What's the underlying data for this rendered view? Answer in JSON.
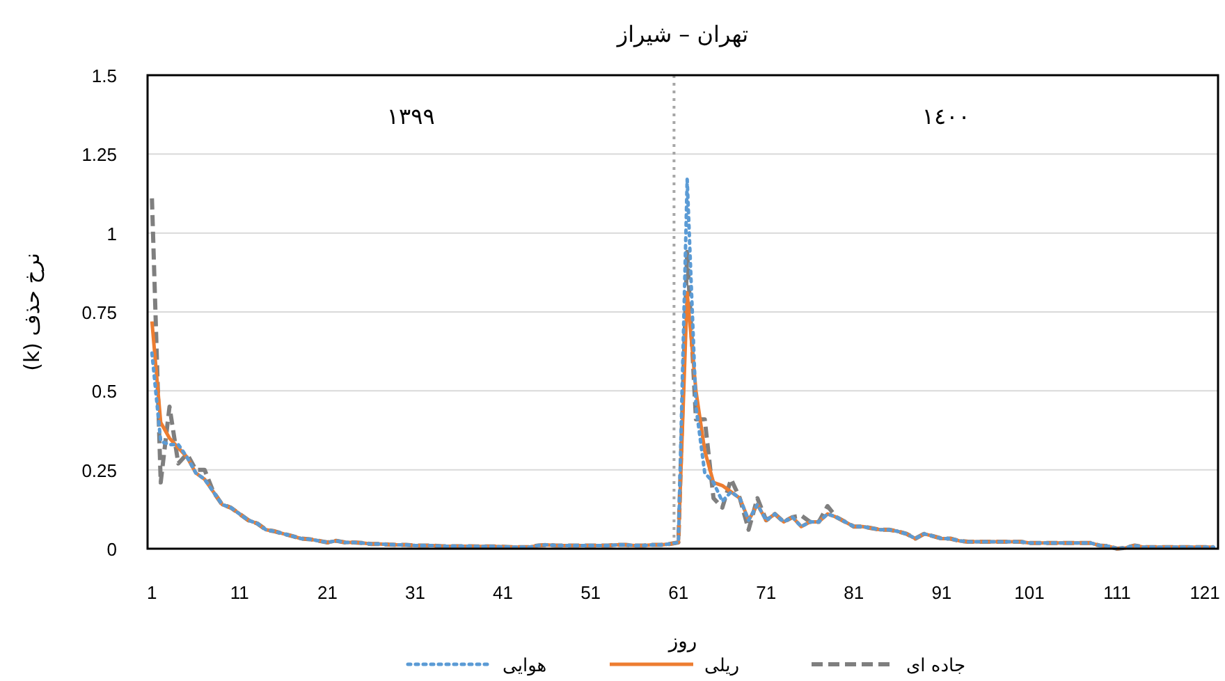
{
  "chart_data": {
    "type": "line",
    "title": "تهران – شیراز",
    "xlabel": "روز",
    "ylabel": "نرخ حذف (k)",
    "annotations": [
      "١٣٩٩",
      "١٤٠٠"
    ],
    "x": [
      1,
      2,
      3,
      4,
      5,
      6,
      7,
      8,
      9,
      10,
      11,
      12,
      13,
      14,
      15,
      16,
      17,
      18,
      19,
      20,
      21,
      22,
      23,
      24,
      25,
      26,
      27,
      28,
      29,
      30,
      31,
      32,
      33,
      34,
      35,
      36,
      37,
      38,
      39,
      40,
      41,
      42,
      43,
      44,
      45,
      46,
      47,
      48,
      49,
      50,
      51,
      52,
      53,
      54,
      55,
      56,
      57,
      58,
      59,
      60,
      61,
      62,
      63,
      64,
      65,
      66,
      67,
      68,
      69,
      70,
      71,
      72,
      73,
      74,
      75,
      76,
      77,
      78,
      79,
      80,
      81,
      82,
      83,
      84,
      85,
      86,
      87,
      88,
      89,
      90,
      91,
      92,
      93,
      94,
      95,
      96,
      97,
      98,
      99,
      100,
      101,
      102,
      103,
      104,
      105,
      106,
      107,
      108,
      109,
      110,
      111,
      112,
      113,
      114,
      115,
      116,
      117,
      118,
      119,
      120,
      121,
      122
    ],
    "xlim": [
      0.5,
      122.5
    ],
    "xticks": [
      1,
      11,
      21,
      31,
      41,
      51,
      61,
      71,
      81,
      91,
      101,
      111,
      121
    ],
    "ylim": [
      0,
      1.5
    ],
    "yticks": [
      0,
      {
        "value": 0.25,
        "label": "0.25"
      },
      {
        "value": 0.5,
        "label": "0.5"
      },
      {
        "value": 0.75,
        "label": "0.75"
      },
      1,
      {
        "value": 1.25,
        "label": "1.25"
      },
      {
        "value": 1.5,
        "label": "1.5"
      }
    ],
    "grid": "y",
    "legend": "bottom",
    "ref_lines": [
      {
        "axis": "x",
        "value": 60.5,
        "label": null,
        "color": "#a6a6a6",
        "line_style": "dotted"
      }
    ],
    "series": [
      {
        "name": "هوایی",
        "color": "#5b9bd5",
        "line_style": "dotted",
        "values": [
          0.62,
          0.34,
          0.33,
          0.33,
          0.29,
          0.24,
          0.22,
          0.18,
          0.14,
          0.13,
          0.11,
          0.09,
          0.08,
          0.06,
          0.055,
          0.047,
          0.04,
          0.032,
          0.03,
          0.025,
          0.02,
          0.025,
          0.02,
          0.02,
          0.018,
          0.015,
          0.015,
          0.013,
          0.012,
          0.012,
          0.01,
          0.01,
          0.01,
          0.008,
          0.008,
          0.008,
          0.008,
          0.007,
          0.007,
          0.007,
          0.006,
          0.005,
          0.005,
          0.005,
          0.01,
          0.012,
          0.01,
          0.01,
          0.01,
          0.01,
          0.01,
          0.01,
          0.01,
          0.012,
          0.012,
          0.01,
          0.01,
          0.012,
          0.012,
          0.015,
          0.02,
          1.17,
          0.45,
          0.24,
          0.21,
          0.15,
          0.18,
          0.16,
          0.09,
          0.14,
          0.09,
          0.11,
          0.085,
          0.1,
          0.07,
          0.085,
          0.085,
          0.11,
          0.1,
          0.085,
          0.07,
          0.07,
          0.065,
          0.06,
          0.06,
          0.055,
          0.047,
          0.032,
          0.047,
          0.04,
          0.032,
          0.032,
          0.025,
          0.022,
          0.022,
          0.022,
          0.022,
          0.022,
          0.022,
          0.022,
          0.018,
          0.018,
          0.018,
          0.018,
          0.018,
          0.018,
          0.018,
          0.018,
          0.01,
          0.008,
          0,
          0.003,
          0.01,
          0.005,
          0.005,
          0.005,
          0.005,
          0.005,
          0.005,
          0.005,
          0.005,
          0.005
        ]
      },
      {
        "name": "ریلی",
        "color": "#ed7d31",
        "line_style": "solid",
        "values": [
          0.72,
          0.4,
          0.35,
          0.32,
          0.29,
          0.24,
          0.22,
          0.18,
          0.14,
          0.13,
          0.11,
          0.09,
          0.08,
          0.06,
          0.055,
          0.047,
          0.04,
          0.032,
          0.03,
          0.025,
          0.02,
          0.025,
          0.02,
          0.02,
          0.018,
          0.015,
          0.015,
          0.013,
          0.012,
          0.012,
          0.01,
          0.01,
          0.01,
          0.008,
          0.008,
          0.008,
          0.008,
          0.007,
          0.007,
          0.007,
          0.006,
          0.005,
          0.005,
          0.005,
          0.01,
          0.012,
          0.01,
          0.01,
          0.01,
          0.01,
          0.01,
          0.01,
          0.01,
          0.012,
          0.012,
          0.01,
          0.01,
          0.012,
          0.012,
          0.015,
          0.02,
          0.81,
          0.5,
          0.31,
          0.21,
          0.2,
          0.18,
          0.16,
          0.09,
          0.14,
          0.09,
          0.11,
          0.085,
          0.1,
          0.07,
          0.085,
          0.085,
          0.11,
          0.1,
          0.085,
          0.07,
          0.07,
          0.065,
          0.06,
          0.06,
          0.055,
          0.047,
          0.032,
          0.047,
          0.04,
          0.032,
          0.032,
          0.025,
          0.022,
          0.022,
          0.022,
          0.022,
          0.022,
          0.022,
          0.022,
          0.018,
          0.018,
          0.018,
          0.018,
          0.018,
          0.018,
          0.018,
          0.018,
          0.01,
          0.008,
          0,
          0.003,
          0.01,
          0.005,
          0.005,
          0.005,
          0.005,
          0.005,
          0.005,
          0.005,
          0.005,
          0.005
        ]
      },
      {
        "name": "جاده ای",
        "color": "#7f7f7f",
        "line_style": "dashed",
        "values": [
          1.11,
          0.21,
          0.45,
          0.27,
          0.3,
          0.25,
          0.25,
          0.18,
          0.14,
          0.13,
          0.11,
          0.09,
          0.08,
          0.06,
          0.055,
          0.047,
          0.04,
          0.032,
          0.03,
          0.025,
          0.02,
          0.025,
          0.02,
          0.02,
          0.018,
          0.015,
          0.015,
          0.013,
          0.012,
          0.012,
          0.01,
          0.01,
          0.01,
          0.008,
          0.008,
          0.008,
          0.008,
          0.007,
          0.007,
          0.007,
          0.006,
          0.005,
          0.005,
          0.005,
          0.01,
          0.012,
          0.01,
          0.01,
          0.01,
          0.01,
          0.01,
          0.01,
          0.01,
          0.012,
          0.012,
          0.01,
          0.01,
          0.012,
          0.012,
          0.015,
          0.02,
          0.94,
          0.41,
          0.41,
          0.16,
          0.13,
          0.22,
          0.16,
          0.06,
          0.16,
          0.09,
          0.11,
          0.085,
          0.1,
          0.105,
          0.085,
          0.085,
          0.135,
          0.1,
          0.085,
          0.07,
          0.07,
          0.065,
          0.06,
          0.06,
          0.055,
          0.047,
          0.032,
          0.047,
          0.04,
          0.032,
          0.032,
          0.025,
          0.022,
          0.022,
          0.022,
          0.022,
          0.022,
          0.022,
          0.022,
          0.018,
          0.018,
          0.018,
          0.018,
          0.018,
          0.018,
          0.018,
          0.018,
          0.01,
          0.008,
          0,
          0.003,
          0.01,
          0.005,
          0.005,
          0.005,
          0.005,
          0.005,
          0.005,
          0.005,
          0.005,
          0.005
        ]
      }
    ]
  }
}
